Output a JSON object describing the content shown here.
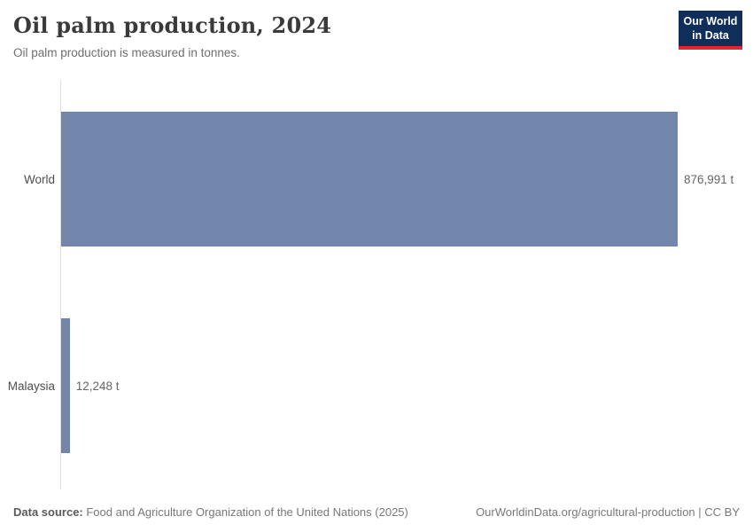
{
  "header": {
    "title": "Oil palm production, 2024",
    "subtitle": "Oil palm production is measured in tonnes.",
    "logo": {
      "line1": "Our World",
      "line2": "in Data",
      "bg_color": "#0f2e5a",
      "accent_color": "#e0272e"
    }
  },
  "chart_data": {
    "type": "bar",
    "orientation": "horizontal",
    "title": "Oil palm production, 2024",
    "subtitle": "Oil palm production is measured in tonnes.",
    "categories": [
      "World",
      "Malaysia"
    ],
    "values": [
      876991,
      12248
    ],
    "value_labels": [
      "876,991 t",
      "12,248 t"
    ],
    "unit": "tonnes",
    "xlim": [
      0,
      876991
    ],
    "bar_color": "#7286ac",
    "axis_line_color": "#dedede",
    "grid": "off",
    "legend": "none"
  },
  "footer": {
    "source_label": "Data source:",
    "source_text": " Food and Agriculture Organization of the United Nations (2025)",
    "link_text": "OurWorldinData.org/agricultural-production | CC BY"
  }
}
